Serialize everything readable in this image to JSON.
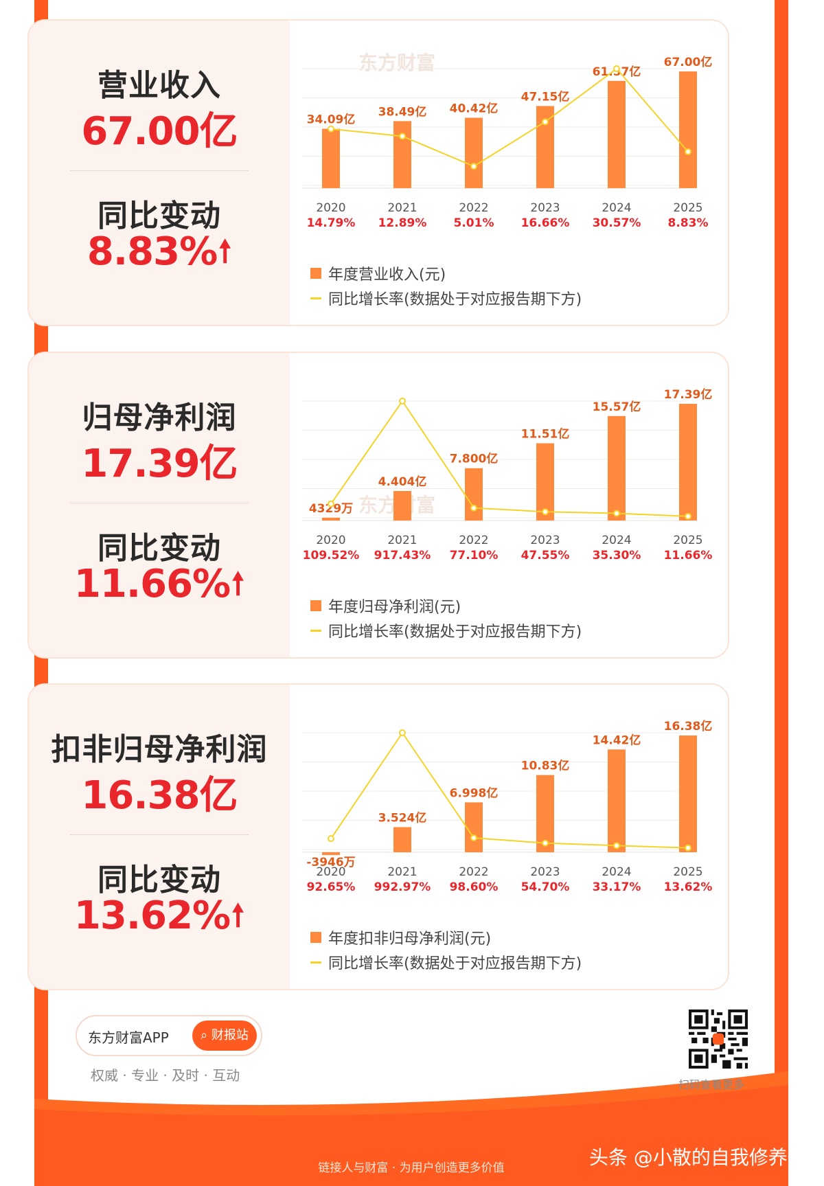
{
  "cards": [
    {
      "title": "营业收入",
      "value": "67.00亿",
      "change_label": "同比变动",
      "change_value": "8.83%",
      "legend_bar": "年度营业收入(元)",
      "legend_line": "同比增长率(数据处于对应报告期下方)"
    },
    {
      "title": "归母净利润",
      "value": "17.39亿",
      "change_label": "同比变动",
      "change_value": "11.66%",
      "legend_bar": "年度归母净利润(元)",
      "legend_line": "同比增长率(数据处于对应报告期下方)"
    },
    {
      "title": "扣非归母净利润",
      "value": "16.38亿",
      "change_label": "同比变动",
      "change_value": "13.62%",
      "legend_bar": "年度扣非归母净利润(元)",
      "legend_line": "同比增长率(数据处于对应报告期下方)"
    }
  ],
  "chart_data": [
    {
      "type": "bar",
      "categories": [
        "2020",
        "2021",
        "2022",
        "2023",
        "2024",
        "2025"
      ],
      "series": [
        {
          "name": "年度营业收入(元)",
          "values": [
            34.09,
            38.49,
            40.42,
            47.15,
            61.57,
            67.0
          ]
        },
        {
          "name": "同比增长率(数据处于对应报告期下方)",
          "type": "line",
          "values": [
            14.79,
            12.89,
            5.01,
            16.66,
            30.57,
            8.83
          ]
        }
      ],
      "bar_labels": [
        "34.09亿",
        "38.49亿",
        "40.42亿",
        "47.15亿",
        "61.57亿",
        "67.00亿"
      ],
      "growth_labels": [
        "14.79%",
        "12.89%",
        "5.01%",
        "16.66%",
        "30.57%",
        "8.83%"
      ],
      "unit": "亿"
    },
    {
      "type": "bar",
      "categories": [
        "2020",
        "2021",
        "2022",
        "2023",
        "2024",
        "2025"
      ],
      "series": [
        {
          "name": "年度归母净利润(元)",
          "values": [
            0.4329,
            4.404,
            7.8,
            11.51,
            15.57,
            17.39
          ]
        },
        {
          "name": "同比增长率(数据处于对应报告期下方)",
          "type": "line",
          "values": [
            109.52,
            917.43,
            77.1,
            47.55,
            35.3,
            11.66
          ]
        }
      ],
      "bar_labels": [
        "4329万",
        "4.404亿",
        "7.800亿",
        "11.51亿",
        "15.57亿",
        "17.39亿"
      ],
      "growth_labels": [
        "109.52%",
        "917.43%",
        "77.10%",
        "47.55%",
        "35.30%",
        "11.66%"
      ],
      "unit": "亿"
    },
    {
      "type": "bar",
      "categories": [
        "2020",
        "2021",
        "2022",
        "2023",
        "2024",
        "2025"
      ],
      "series": [
        {
          "name": "年度扣非归母净利润(元)",
          "values": [
            -0.3946,
            3.524,
            6.998,
            10.83,
            14.42,
            16.38
          ]
        },
        {
          "name": "同比增长率(数据处于对应报告期下方)",
          "type": "line",
          "values": [
            92.65,
            992.97,
            98.6,
            54.7,
            33.17,
            13.62
          ]
        }
      ],
      "bar_labels": [
        "-3946万",
        "3.524亿",
        "6.998亿",
        "10.83亿",
        "14.42亿",
        "16.38亿"
      ],
      "growth_labels": [
        "92.65%",
        "992.97%",
        "98.60%",
        "54.70%",
        "33.17%",
        "13.62%"
      ],
      "unit": "亿"
    }
  ],
  "colors": {
    "bar": "#ff8a3d",
    "line": "#f5d327",
    "label": "#e05a1a",
    "growth": "#e8262b",
    "accent": "#ff5a1f"
  },
  "watermark": "东方财富",
  "brand": {
    "name": "东方财富APP",
    "button": "财报站",
    "slogan": "权威 · 专业 · 及时 · 互动"
  },
  "qr_caption": "扫码查看更多",
  "footer_slogan": "链接人与财富 · 为用户创造更多价值",
  "credit": "头条 @小散的自我修养"
}
